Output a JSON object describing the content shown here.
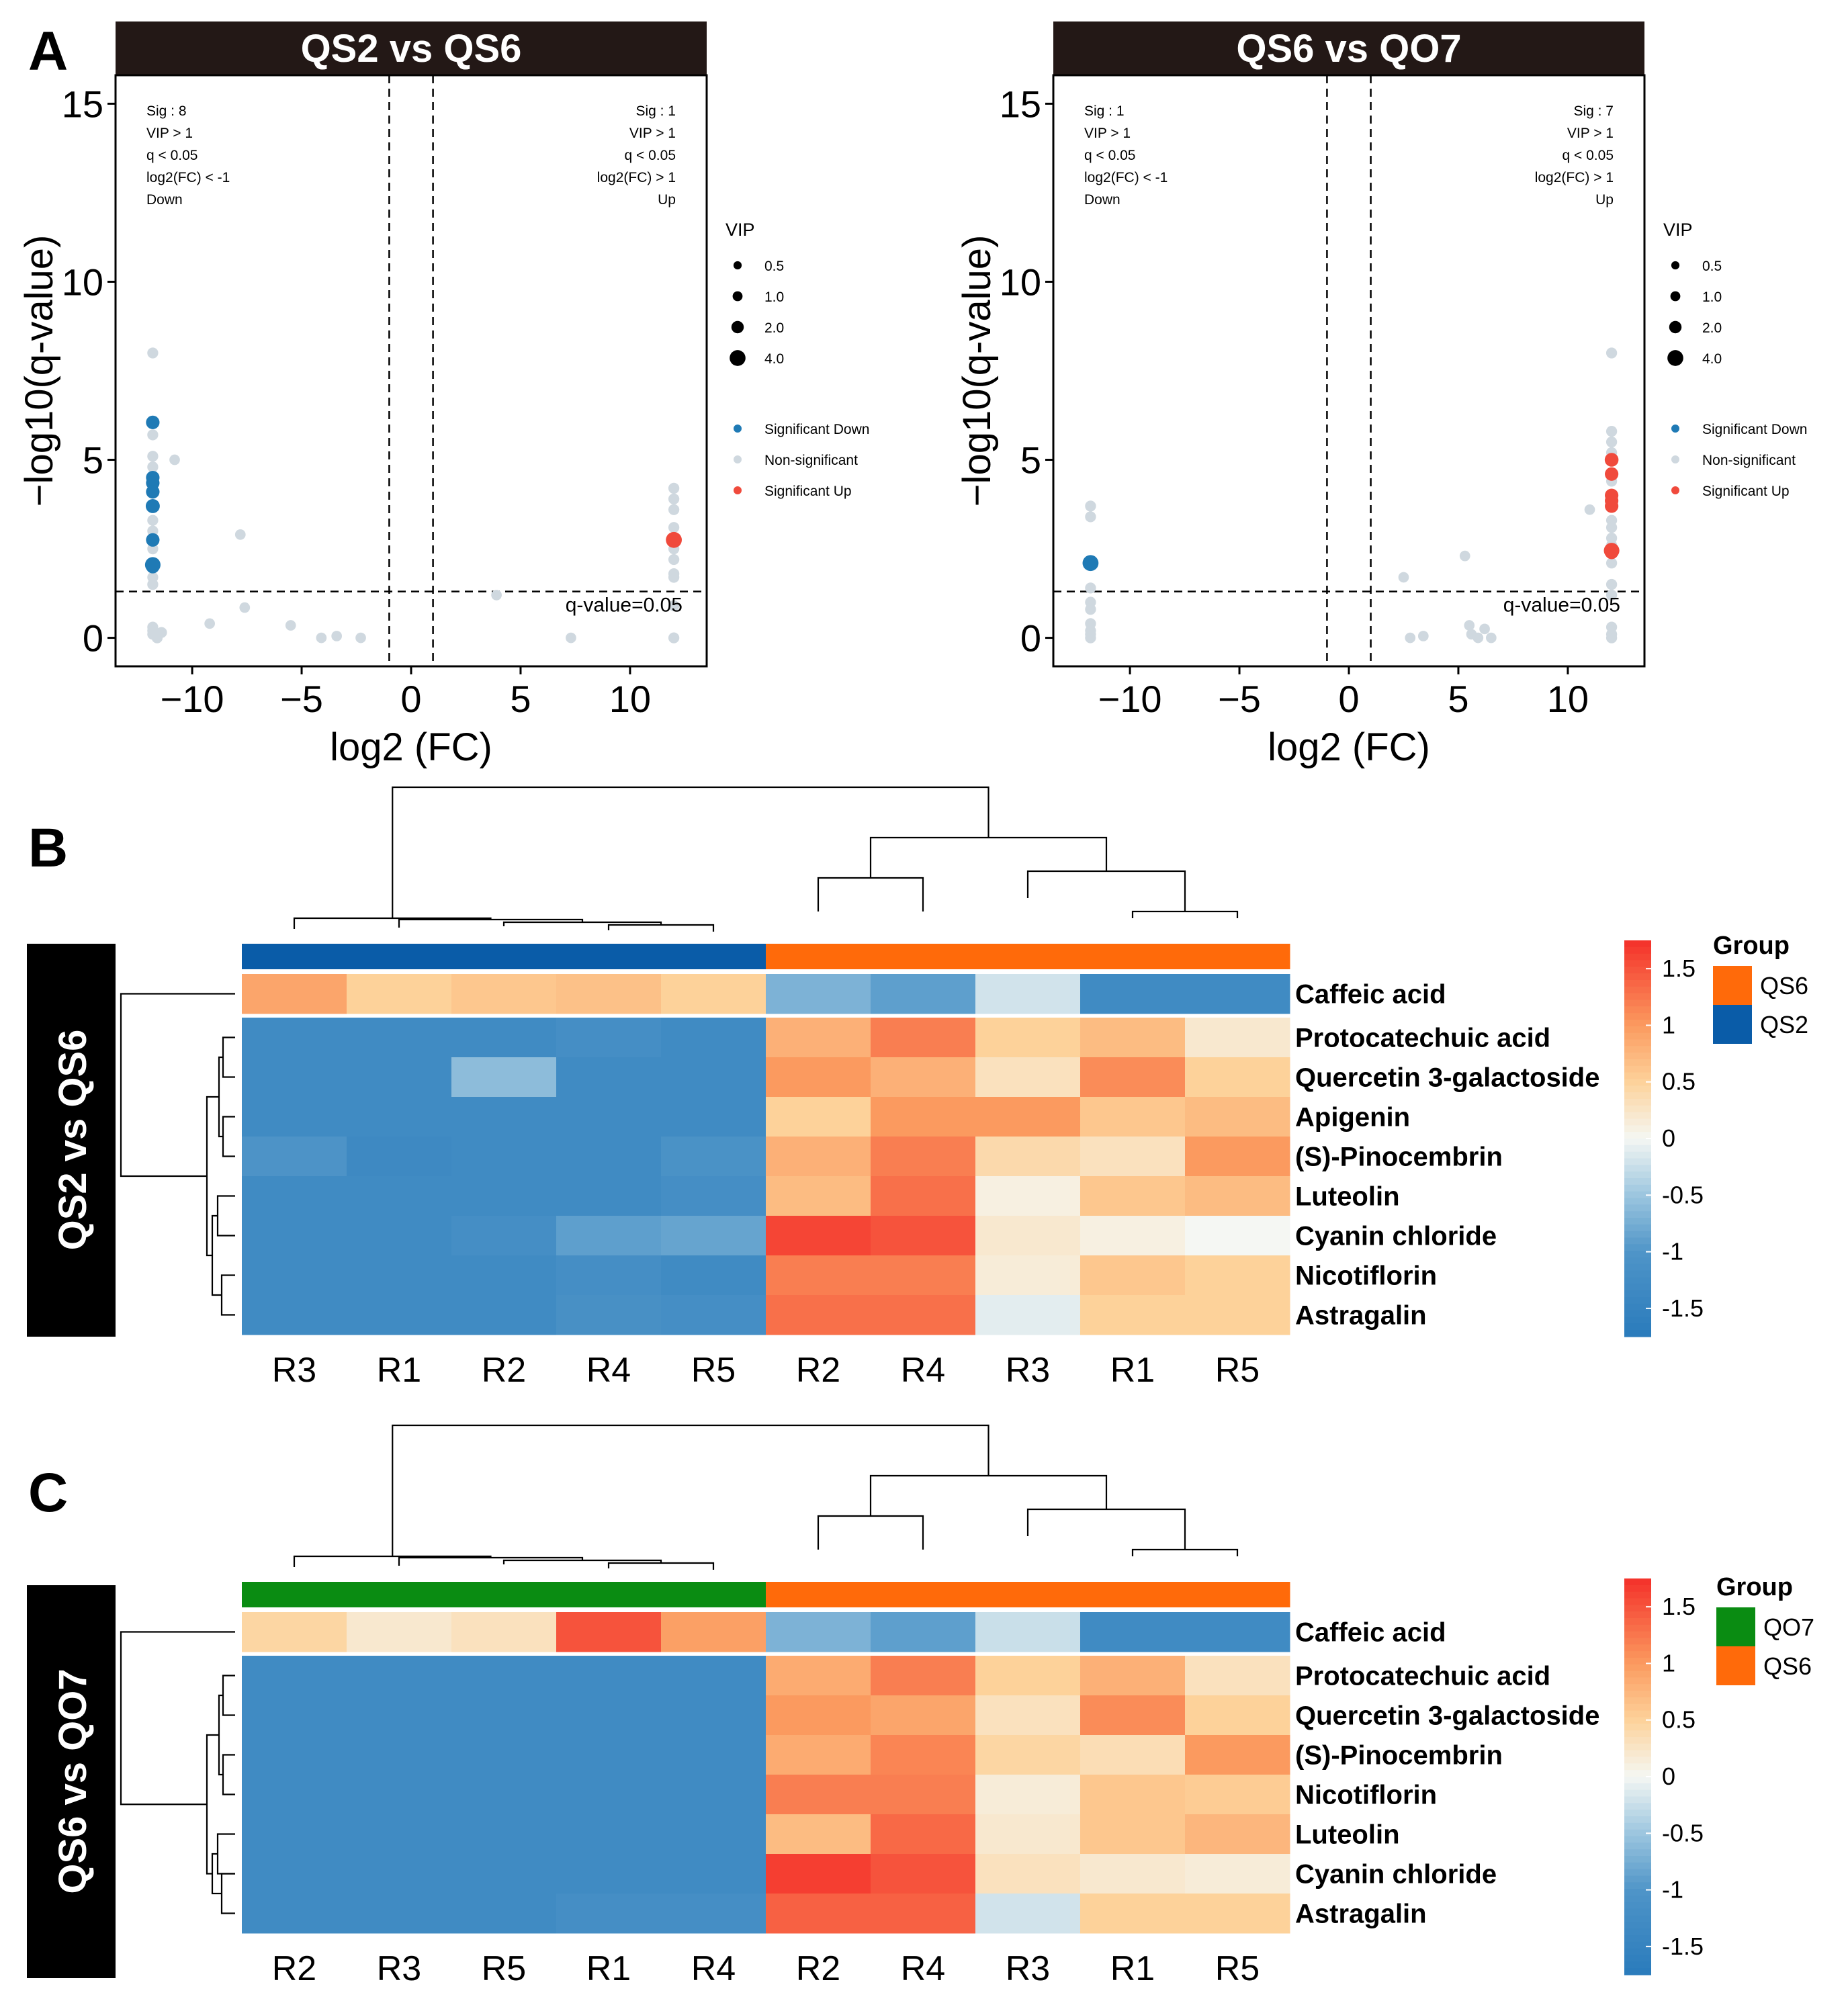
{
  "panel_letters": [
    "A",
    "B",
    "C"
  ],
  "colors": {
    "sig_down": "#1f7ab5",
    "non_sig": "#cfd8df",
    "sig_up": "#f04a3c",
    "strip_bg": "#231816",
    "group_QS2": "#0a5ca8",
    "group_QS6": "#ff6a0a",
    "group_QO7": "#0a8c12",
    "heat_low": "#2a7bbb",
    "heat_mid": "#f5f7f3",
    "heat_high": "#f4302a"
  },
  "chart_data": [
    {
      "type": "scatter",
      "title": "QS2 vs QS6",
      "xlabel": "log2 (FC)",
      "ylabel": "−log10(q-value)",
      "xlim": [
        -13.5,
        13.5
      ],
      "ylim": [
        -0.8,
        15.8
      ],
      "xticks": [
        -10,
        -5,
        0,
        5,
        10
      ],
      "xtick_labels": [
        "−10",
        "−5",
        "0",
        "5",
        "10"
      ],
      "yticks": [
        0,
        5,
        10,
        15
      ],
      "vlines": [
        -1,
        1
      ],
      "hline": 1.3,
      "hline_label": "q-value=0.05",
      "annot_left": [
        "Sig : 8",
        "VIP > 1",
        "q < 0.05",
        "log2(FC) < -1",
        "Down"
      ],
      "annot_right": [
        "Sig : 1",
        "VIP > 1",
        "q < 0.05",
        "log2(FC) > 1",
        "Up"
      ],
      "points": [
        {
          "x": -11.8,
          "y": 6.05,
          "cls": "down",
          "vip": 1.6
        },
        {
          "x": -11.8,
          "y": 4.5,
          "cls": "down",
          "vip": 1.6
        },
        {
          "x": -11.8,
          "y": 4.35,
          "cls": "down",
          "vip": 1.6
        },
        {
          "x": -11.8,
          "y": 4.1,
          "cls": "down",
          "vip": 1.6
        },
        {
          "x": -11.8,
          "y": 3.7,
          "cls": "down",
          "vip": 1.8
        },
        {
          "x": -11.8,
          "y": 2.75,
          "cls": "down",
          "vip": 1.6
        },
        {
          "x": -11.8,
          "y": 2.05,
          "cls": "down",
          "vip": 2.4
        },
        {
          "x": -11.8,
          "y": 2.0,
          "cls": "down",
          "vip": 1.6
        },
        {
          "x": 12.0,
          "y": 2.75,
          "cls": "up",
          "vip": 2.6
        },
        {
          "x": -11.8,
          "y": 8.0,
          "cls": "ns",
          "vip": 0.8
        },
        {
          "x": -11.8,
          "y": 5.7,
          "cls": "ns",
          "vip": 0.8
        },
        {
          "x": -11.8,
          "y": 5.1,
          "cls": "ns",
          "vip": 0.8
        },
        {
          "x": -11.8,
          "y": 4.8,
          "cls": "ns",
          "vip": 0.8
        },
        {
          "x": -11.8,
          "y": 3.3,
          "cls": "ns",
          "vip": 0.8
        },
        {
          "x": -11.8,
          "y": 3.0,
          "cls": "ns",
          "vip": 0.8
        },
        {
          "x": -11.8,
          "y": 2.5,
          "cls": "ns",
          "vip": 0.8
        },
        {
          "x": -11.8,
          "y": 1.7,
          "cls": "ns",
          "vip": 0.8
        },
        {
          "x": -11.8,
          "y": 1.5,
          "cls": "ns",
          "vip": 0.8
        },
        {
          "x": -11.8,
          "y": 0.3,
          "cls": "ns",
          "vip": 0.8
        },
        {
          "x": -11.8,
          "y": 0.2,
          "cls": "ns",
          "vip": 0.8
        },
        {
          "x": -11.8,
          "y": 0.1,
          "cls": "ns",
          "vip": 0.8
        },
        {
          "x": -11.6,
          "y": 0.0,
          "cls": "ns",
          "vip": 0.8
        },
        {
          "x": -11.4,
          "y": 0.15,
          "cls": "ns",
          "vip": 0.8
        },
        {
          "x": -10.8,
          "y": 5.0,
          "cls": "ns",
          "vip": 0.7
        },
        {
          "x": -9.2,
          "y": 0.4,
          "cls": "ns",
          "vip": 0.7
        },
        {
          "x": -7.8,
          "y": 2.9,
          "cls": "ns",
          "vip": 0.7
        },
        {
          "x": -7.6,
          "y": 0.85,
          "cls": "ns",
          "vip": 0.7
        },
        {
          "x": -5.5,
          "y": 0.35,
          "cls": "ns",
          "vip": 0.7
        },
        {
          "x": -4.1,
          "y": 0.0,
          "cls": "ns",
          "vip": 0.7
        },
        {
          "x": -3.4,
          "y": 0.05,
          "cls": "ns",
          "vip": 0.7
        },
        {
          "x": -2.3,
          "y": 0.0,
          "cls": "ns",
          "vip": 0.7
        },
        {
          "x": 3.9,
          "y": 1.2,
          "cls": "ns",
          "vip": 0.7
        },
        {
          "x": 7.3,
          "y": 0.0,
          "cls": "ns",
          "vip": 0.7
        },
        {
          "x": 12.0,
          "y": 4.2,
          "cls": "ns",
          "vip": 0.8
        },
        {
          "x": 12.0,
          "y": 3.9,
          "cls": "ns",
          "vip": 0.8
        },
        {
          "x": 12.0,
          "y": 3.6,
          "cls": "ns",
          "vip": 0.8
        },
        {
          "x": 12.0,
          "y": 3.1,
          "cls": "ns",
          "vip": 0.8
        },
        {
          "x": 12.0,
          "y": 2.5,
          "cls": "ns",
          "vip": 0.8
        },
        {
          "x": 12.0,
          "y": 2.2,
          "cls": "ns",
          "vip": 0.8
        },
        {
          "x": 12.0,
          "y": 1.8,
          "cls": "ns",
          "vip": 0.8
        },
        {
          "x": 12.0,
          "y": 1.7,
          "cls": "ns",
          "vip": 0.8
        },
        {
          "x": 12.0,
          "y": 0.9,
          "cls": "ns",
          "vip": 0.8
        },
        {
          "x": 12.0,
          "y": 0.0,
          "cls": "ns",
          "vip": 0.8
        }
      ],
      "legend": {
        "vip_title": "VIP",
        "vip_sizes": [
          0.5,
          1.0,
          2.0,
          4.0
        ],
        "vip_labels": [
          "0.5",
          "1.0",
          "2.0",
          "4.0"
        ],
        "classes": [
          "Significant Down",
          "Non-significant",
          "Significant Up"
        ]
      }
    },
    {
      "type": "scatter",
      "title": "QS6 vs QO7",
      "xlabel": "log2 (FC)",
      "ylabel": "−log10(q-value)",
      "xlim": [
        -13.5,
        13.5
      ],
      "ylim": [
        -0.8,
        15.8
      ],
      "xticks": [
        -10,
        -5,
        0,
        5,
        10
      ],
      "xtick_labels": [
        "−10",
        "−5",
        "0",
        "5",
        "10"
      ],
      "yticks": [
        0,
        5,
        10,
        15
      ],
      "vlines": [
        -1,
        1
      ],
      "hline": 1.3,
      "hline_label": "q-value=0.05",
      "annot_left": [
        "Sig : 1",
        "VIP > 1",
        "q < 0.05",
        "log2(FC) < -1",
        "Down"
      ],
      "annot_right": [
        "Sig : 7",
        "VIP > 1",
        "q < 0.05",
        "log2(FC) > 1",
        "Up"
      ],
      "points": [
        {
          "x": -11.8,
          "y": 2.1,
          "cls": "down",
          "vip": 2.6
        },
        {
          "x": 12.0,
          "y": 5.0,
          "cls": "up",
          "vip": 1.7
        },
        {
          "x": 12.0,
          "y": 4.6,
          "cls": "up",
          "vip": 1.6
        },
        {
          "x": 12.0,
          "y": 4.0,
          "cls": "up",
          "vip": 1.6
        },
        {
          "x": 12.0,
          "y": 3.85,
          "cls": "up",
          "vip": 1.6
        },
        {
          "x": 12.0,
          "y": 3.7,
          "cls": "up",
          "vip": 1.6
        },
        {
          "x": 12.0,
          "y": 2.45,
          "cls": "up",
          "vip": 2.4
        },
        {
          "x": 12.0,
          "y": 2.4,
          "cls": "up",
          "vip": 1.6
        },
        {
          "x": -11.8,
          "y": 3.7,
          "cls": "ns",
          "vip": 0.8
        },
        {
          "x": -11.8,
          "y": 3.4,
          "cls": "ns",
          "vip": 0.8
        },
        {
          "x": -11.8,
          "y": 1.4,
          "cls": "ns",
          "vip": 0.8
        },
        {
          "x": -11.8,
          "y": 1.0,
          "cls": "ns",
          "vip": 0.8
        },
        {
          "x": -11.8,
          "y": 0.8,
          "cls": "ns",
          "vip": 0.8
        },
        {
          "x": -11.8,
          "y": 0.4,
          "cls": "ns",
          "vip": 0.8
        },
        {
          "x": -11.8,
          "y": 0.2,
          "cls": "ns",
          "vip": 0.8
        },
        {
          "x": -11.8,
          "y": 0.1,
          "cls": "ns",
          "vip": 0.8
        },
        {
          "x": -11.8,
          "y": 0.0,
          "cls": "ns",
          "vip": 0.8
        },
        {
          "x": 2.5,
          "y": 1.7,
          "cls": "ns",
          "vip": 0.7
        },
        {
          "x": 2.8,
          "y": 0.0,
          "cls": "ns",
          "vip": 0.7
        },
        {
          "x": 3.4,
          "y": 0.05,
          "cls": "ns",
          "vip": 0.7
        },
        {
          "x": 5.3,
          "y": 2.3,
          "cls": "ns",
          "vip": 0.7
        },
        {
          "x": 5.5,
          "y": 0.35,
          "cls": "ns",
          "vip": 0.7
        },
        {
          "x": 5.6,
          "y": 0.1,
          "cls": "ns",
          "vip": 0.7
        },
        {
          "x": 5.9,
          "y": 0.0,
          "cls": "ns",
          "vip": 0.7
        },
        {
          "x": 6.2,
          "y": 0.25,
          "cls": "ns",
          "vip": 0.7
        },
        {
          "x": 6.5,
          "y": 0.0,
          "cls": "ns",
          "vip": 0.7
        },
        {
          "x": 11.0,
          "y": 3.6,
          "cls": "ns",
          "vip": 0.7
        },
        {
          "x": 12.0,
          "y": 8.0,
          "cls": "ns",
          "vip": 0.8
        },
        {
          "x": 12.0,
          "y": 5.8,
          "cls": "ns",
          "vip": 0.8
        },
        {
          "x": 12.0,
          "y": 5.5,
          "cls": "ns",
          "vip": 0.8
        },
        {
          "x": 12.0,
          "y": 5.2,
          "cls": "ns",
          "vip": 0.8
        },
        {
          "x": 12.0,
          "y": 4.4,
          "cls": "ns",
          "vip": 0.8
        },
        {
          "x": 12.0,
          "y": 3.3,
          "cls": "ns",
          "vip": 0.8
        },
        {
          "x": 12.0,
          "y": 3.1,
          "cls": "ns",
          "vip": 0.8
        },
        {
          "x": 12.0,
          "y": 2.8,
          "cls": "ns",
          "vip": 0.8
        },
        {
          "x": 12.0,
          "y": 2.6,
          "cls": "ns",
          "vip": 0.8
        },
        {
          "x": 12.0,
          "y": 2.1,
          "cls": "ns",
          "vip": 0.8
        },
        {
          "x": 12.0,
          "y": 1.5,
          "cls": "ns",
          "vip": 0.8
        },
        {
          "x": 12.0,
          "y": 1.2,
          "cls": "ns",
          "vip": 0.8
        },
        {
          "x": 12.0,
          "y": 0.3,
          "cls": "ns",
          "vip": 0.8
        },
        {
          "x": 12.0,
          "y": 0.1,
          "cls": "ns",
          "vip": 0.8
        },
        {
          "x": 12.0,
          "y": 0.0,
          "cls": "ns",
          "vip": 0.8
        }
      ],
      "legend": {
        "vip_title": "VIP",
        "vip_sizes": [
          0.5,
          1.0,
          2.0,
          4.0
        ],
        "vip_labels": [
          "0.5",
          "1.0",
          "2.0",
          "4.0"
        ],
        "classes": [
          "Significant Down",
          "Non-significant",
          "Significant Up"
        ]
      }
    },
    {
      "type": "heatmap",
      "side_label": "QS2 vs QS6",
      "rows": [
        "Caffeic acid",
        "Protocatechuic acid",
        "Quercetin 3-galactoside",
        "Apigenin",
        "(S)-Pinocembrin",
        "Luteolin",
        "Cyanin chloride",
        "Nicotiflorin",
        "Astragalin"
      ],
      "columns": [
        "R3",
        "R1",
        "R2",
        "R4",
        "R5",
        "R2",
        "R4",
        "R3",
        "R1",
        "R5"
      ],
      "column_groups": [
        "QS2",
        "QS2",
        "QS2",
        "QS2",
        "QS2",
        "QS6",
        "QS6",
        "QS6",
        "QS6",
        "QS6"
      ],
      "values": [
        [
          0.9,
          0.5,
          0.6,
          0.65,
          0.5,
          -0.7,
          -0.9,
          -0.2,
          -1.3,
          -1.3
        ],
        [
          -1.3,
          -1.3,
          -1.3,
          -1.2,
          -1.3,
          0.8,
          1.2,
          0.5,
          0.7,
          0.2
        ],
        [
          -1.3,
          -1.3,
          -0.6,
          -1.3,
          -1.3,
          1.0,
          0.8,
          0.3,
          1.1,
          0.5
        ],
        [
          -1.3,
          -1.3,
          -1.3,
          -1.3,
          -1.3,
          0.5,
          1.0,
          1.0,
          0.6,
          0.7
        ],
        [
          -1.05,
          -1.35,
          -1.3,
          -1.3,
          -1.1,
          0.8,
          1.2,
          0.4,
          0.3,
          1.0
        ],
        [
          -1.3,
          -1.3,
          -1.3,
          -1.3,
          -1.2,
          0.7,
          1.3,
          0.1,
          0.6,
          0.7
        ],
        [
          -1.3,
          -1.3,
          -1.2,
          -0.9,
          -0.85,
          1.6,
          1.5,
          0.2,
          0.1,
          0.0
        ],
        [
          -1.3,
          -1.3,
          -1.3,
          -1.2,
          -1.3,
          1.2,
          1.2,
          0.15,
          0.6,
          0.5
        ],
        [
          -1.3,
          -1.3,
          -1.3,
          -1.15,
          -1.2,
          1.3,
          1.3,
          -0.1,
          0.5,
          0.5
        ]
      ],
      "colorbar": {
        "min": -1.75,
        "max": 1.75,
        "ticks": [
          1.5,
          1,
          0.5,
          0,
          -0.5,
          -1,
          -1.5
        ],
        "tick_labels": [
          "1.5",
          "1",
          "0.5",
          "0",
          "-0.5",
          "-1",
          "-1.5"
        ]
      },
      "group_legend": {
        "title": "Group",
        "items": [
          "QS6",
          "QS2"
        ]
      }
    },
    {
      "type": "heatmap",
      "side_label": "QS6 vs QO7",
      "rows": [
        "Caffeic acid",
        "Protocatechuic acid",
        "Quercetin 3-galactoside",
        "(S)-Pinocembrin",
        "Nicotiflorin",
        "Luteolin",
        "Cyanin chloride",
        "Astragalin"
      ],
      "columns": [
        "R2",
        "R3",
        "R5",
        "R1",
        "R4",
        "R2",
        "R4",
        "R3",
        "R1",
        "R5"
      ],
      "column_groups": [
        "QO7",
        "QO7",
        "QO7",
        "QO7",
        "QO7",
        "QS6",
        "QS6",
        "QS6",
        "QS6",
        "QS6"
      ],
      "values": [
        [
          0.45,
          0.2,
          0.3,
          1.5,
          0.95,
          -0.7,
          -0.9,
          -0.25,
          -1.3,
          -1.3
        ],
        [
          -1.3,
          -1.3,
          -1.3,
          -1.3,
          -1.3,
          0.85,
          1.2,
          0.5,
          0.8,
          0.3
        ],
        [
          -1.3,
          -1.3,
          -1.3,
          -1.3,
          -1.3,
          1.0,
          0.9,
          0.3,
          1.1,
          0.5
        ],
        [
          -1.3,
          -1.3,
          -1.3,
          -1.3,
          -1.3,
          0.85,
          1.15,
          0.45,
          0.35,
          1.0
        ],
        [
          -1.3,
          -1.3,
          -1.3,
          -1.3,
          -1.3,
          1.2,
          1.2,
          0.15,
          0.6,
          0.55
        ],
        [
          -1.3,
          -1.3,
          -1.3,
          -1.3,
          -1.3,
          0.7,
          1.35,
          0.2,
          0.6,
          0.75
        ],
        [
          -1.3,
          -1.3,
          -1.3,
          -1.3,
          -1.3,
          1.65,
          1.5,
          0.3,
          0.2,
          0.15
        ],
        [
          -1.3,
          -1.3,
          -1.3,
          -1.2,
          -1.2,
          1.4,
          1.4,
          -0.2,
          0.5,
          0.5
        ]
      ],
      "colorbar": {
        "min": -1.75,
        "max": 1.75,
        "ticks": [
          1.5,
          1,
          0.5,
          0,
          -0.5,
          -1,
          -1.5
        ],
        "tick_labels": [
          "1.5",
          "1",
          "0.5",
          "0",
          "-0.5",
          "-1",
          "-1.5"
        ]
      },
      "group_legend": {
        "title": "Group",
        "items": [
          "QO7",
          "QS6"
        ]
      }
    }
  ]
}
